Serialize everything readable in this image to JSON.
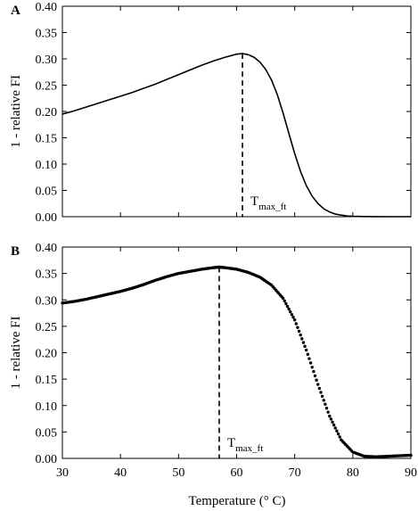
{
  "chart_data": [
    {
      "panel_label": "A",
      "type": "line",
      "title": "",
      "xlabel": "",
      "ylabel": "1 - relative FI",
      "xlim": [
        30,
        90
      ],
      "ylim": [
        0.0,
        0.4
      ],
      "y_ticks": [
        "0.00",
        "0.05",
        "0.10",
        "0.15",
        "0.20",
        "0.25",
        "0.30",
        "0.35",
        "0.40"
      ],
      "grid": false,
      "series": [
        {
          "style": "solid",
          "x": [
            30,
            32,
            34,
            36,
            38,
            40,
            42,
            44,
            46,
            48,
            50,
            52,
            54,
            56,
            58,
            60,
            61,
            62,
            63,
            64,
            65,
            66,
            67,
            68,
            69,
            70,
            71,
            72,
            73,
            74,
            75,
            76,
            77,
            78,
            79,
            80,
            82,
            84,
            86,
            88,
            90
          ],
          "y": [
            0.195,
            0.201,
            0.208,
            0.215,
            0.222,
            0.229,
            0.236,
            0.244,
            0.252,
            0.261,
            0.27,
            0.279,
            0.288,
            0.296,
            0.303,
            0.309,
            0.31,
            0.308,
            0.303,
            0.294,
            0.28,
            0.26,
            0.232,
            0.197,
            0.158,
            0.12,
            0.086,
            0.059,
            0.039,
            0.025,
            0.015,
            0.009,
            0.005,
            0.003,
            0.0015,
            0.0008,
            0.0003,
            0.0001,
            0.0,
            0.0,
            0.0
          ]
        }
      ],
      "marker": {
        "x": 61,
        "y": 0.31,
        "label_main": "T",
        "label_sub": "max_ft"
      }
    },
    {
      "panel_label": "B",
      "type": "scatter",
      "title": "",
      "xlabel": "Temperature (° C)",
      "ylabel": "1 - relative FI",
      "xlim": [
        30,
        90
      ],
      "ylim": [
        0.0,
        0.4
      ],
      "x_ticks": [
        "30",
        "40",
        "50",
        "60",
        "70",
        "80",
        "90"
      ],
      "y_ticks": [
        "0.00",
        "0.05",
        "0.10",
        "0.15",
        "0.20",
        "0.25",
        "0.30",
        "0.35",
        "0.40"
      ],
      "grid": false,
      "series": [
        {
          "style": "dots",
          "x": [
            30,
            32,
            34,
            36,
            38,
            40,
            42,
            44,
            46,
            48,
            50,
            52,
            54,
            56,
            57,
            58,
            60,
            62,
            64,
            66,
            68,
            70,
            72,
            74,
            76,
            78,
            80,
            82,
            84,
            86,
            88,
            90
          ],
          "y": [
            0.294,
            0.297,
            0.301,
            0.306,
            0.311,
            0.316,
            0.322,
            0.329,
            0.337,
            0.344,
            0.35,
            0.354,
            0.358,
            0.361,
            0.362,
            0.361,
            0.358,
            0.352,
            0.343,
            0.328,
            0.303,
            0.262,
            0.205,
            0.14,
            0.08,
            0.035,
            0.012,
            0.004,
            0.003,
            0.004,
            0.005,
            0.006
          ]
        }
      ],
      "marker": {
        "x": 57,
        "y": 0.362,
        "label_main": "T",
        "label_sub": "max_ft"
      }
    }
  ]
}
